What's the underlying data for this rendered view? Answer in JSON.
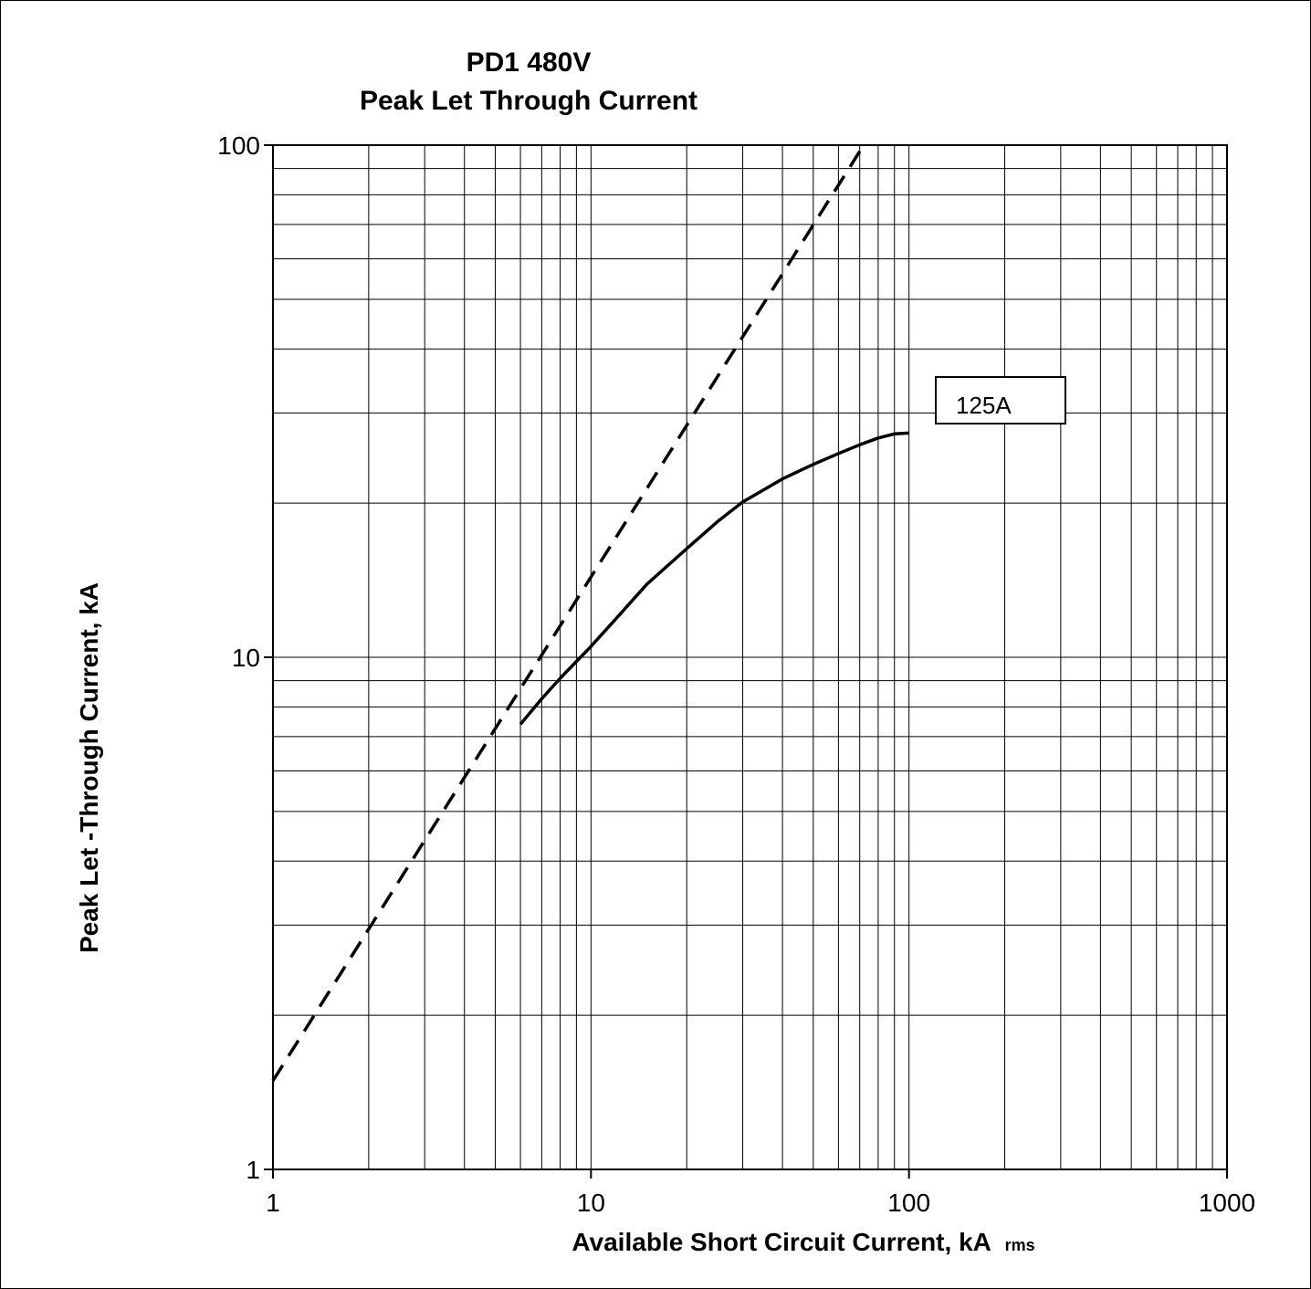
{
  "chart_data": {
    "type": "line",
    "title_line1": "PD1 480V",
    "title_line2": "Peak Let Through Current",
    "xlabel": "Available Short Circuit Current, kA",
    "xlabel_sub": "rms",
    "ylabel": "Peak Let -Through Current, kA",
    "x_scale": "log",
    "y_scale": "log",
    "xlim": [
      1,
      1000
    ],
    "ylim": [
      1,
      100
    ],
    "x_ticks": [
      "1",
      "10",
      "100",
      "1000"
    ],
    "y_ticks": [
      "1",
      "10",
      "100"
    ],
    "grid": true,
    "series": [
      {
        "name": "125A",
        "style": "solid",
        "x": [
          6,
          7,
          8,
          10,
          12,
          15,
          20,
          25,
          30,
          40,
          50,
          60,
          70,
          80,
          90,
          100
        ],
        "y": [
          7.4,
          8.3,
          9.1,
          10.5,
          11.9,
          13.9,
          16.3,
          18.4,
          20.1,
          22.3,
          23.8,
          25.0,
          26.0,
          26.8,
          27.3,
          27.4
        ]
      },
      {
        "name": "",
        "style": "dashed",
        "x": [
          1,
          72
        ],
        "y": [
          1.49,
          100
        ]
      }
    ],
    "annotation": "125A"
  }
}
